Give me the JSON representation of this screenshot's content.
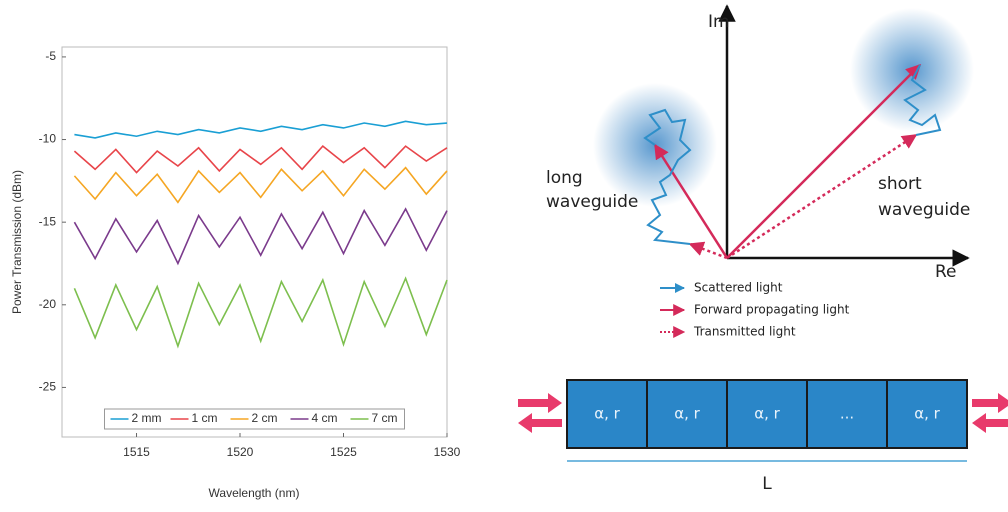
{
  "chart_data": {
    "type": "line",
    "xlabel": "Wavelength (nm)",
    "ylabel": "Power Transmission (dBm)",
    "x": [
      1512,
      1513,
      1514,
      1515,
      1516,
      1517,
      1518,
      1519,
      1520,
      1521,
      1522,
      1523,
      1524,
      1525,
      1526,
      1527,
      1528,
      1529,
      1530
    ],
    "series": [
      {
        "name": "2 mm",
        "color": "#1a9fd4",
        "values": [
          -9.7,
          -9.9,
          -9.6,
          -9.8,
          -9.5,
          -9.7,
          -9.4,
          -9.6,
          -9.3,
          -9.5,
          -9.2,
          -9.4,
          -9.1,
          -9.3,
          -9.0,
          -9.2,
          -8.9,
          -9.1,
          -9.0
        ]
      },
      {
        "name": "1 cm",
        "color": "#e8454a",
        "values": [
          -10.7,
          -11.8,
          -10.6,
          -12.0,
          -10.7,
          -11.6,
          -10.5,
          -11.9,
          -10.6,
          -11.5,
          -10.5,
          -11.8,
          -10.4,
          -11.4,
          -10.5,
          -11.7,
          -10.4,
          -11.3,
          -10.5
        ]
      },
      {
        "name": "2 cm",
        "color": "#f5a623",
        "values": [
          -12.2,
          -13.6,
          -12.0,
          -13.4,
          -12.1,
          -13.8,
          -11.9,
          -13.2,
          -12.0,
          -13.5,
          -11.8,
          -13.1,
          -11.9,
          -13.4,
          -11.8,
          -13.0,
          -11.7,
          -13.3,
          -11.9
        ]
      },
      {
        "name": "4 cm",
        "color": "#7b3b8c",
        "values": [
          -15.0,
          -17.2,
          -14.8,
          -16.8,
          -14.9,
          -17.5,
          -14.6,
          -16.5,
          -14.7,
          -17.0,
          -14.5,
          -16.6,
          -14.4,
          -16.9,
          -14.3,
          -16.4,
          -14.2,
          -16.7,
          -14.3
        ]
      },
      {
        "name": "7 cm",
        "color": "#7dbf4e",
        "values": [
          -19.0,
          -22.0,
          -18.8,
          -21.5,
          -18.9,
          -22.5,
          -18.7,
          -21.2,
          -18.8,
          -22.2,
          -18.6,
          -21.0,
          -18.5,
          -22.4,
          -18.6,
          -21.3,
          -18.4,
          -21.8,
          -18.5
        ]
      }
    ],
    "xlim": [
      1511.4,
      1530
    ],
    "xticks": [
      1515,
      1520,
      1525,
      1530
    ],
    "ylim": [
      -28,
      -4.4
    ],
    "yticks": [
      -25,
      -20,
      -15,
      -10,
      -5
    ],
    "grid": false,
    "legend": "lower center"
  },
  "diagram": {
    "im_axis": "Im",
    "re_axis": "Re",
    "long_label": [
      "long",
      "waveguide"
    ],
    "short_label": [
      "short",
      "waveguide"
    ],
    "legend": [
      "Scattered light",
      "Forward propagating light",
      "Transmitted light"
    ],
    "cells": [
      "α, r",
      "α, r",
      "α, r",
      "...",
      "α, r"
    ],
    "length_label": "L"
  }
}
